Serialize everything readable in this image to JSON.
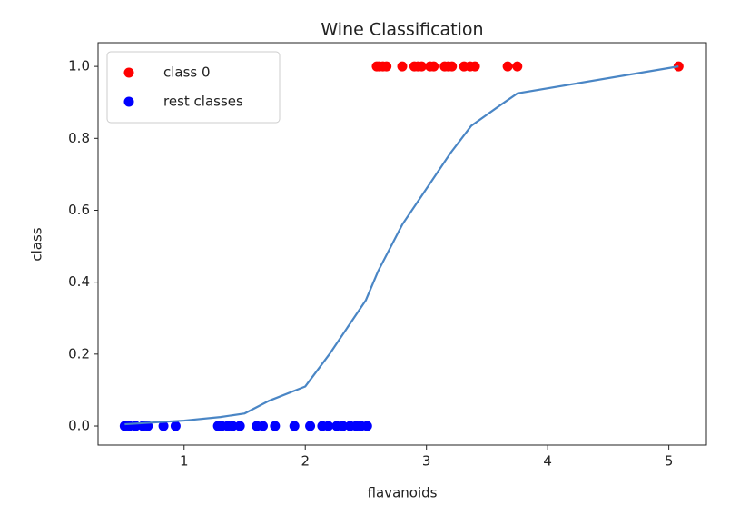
{
  "chart_data": {
    "type": "scatter",
    "title": "Wine Classification",
    "x_label": "flavanoids",
    "y_label": "class",
    "xlim": [
      0.29,
      5.31
    ],
    "ylim": [
      -0.053,
      1.066
    ],
    "xticks": [
      1,
      2,
      3,
      4,
      5
    ],
    "yticks": [
      {
        "value": 0,
        "label": "0.0"
      },
      {
        "value": 0.2,
        "label": "0.2"
      },
      {
        "value": 0.4,
        "label": "0.4"
      },
      {
        "value": 0.6,
        "label": "0.6"
      },
      {
        "value": 0.8,
        "label": "0.8"
      },
      {
        "value": 1,
        "label": "1.0"
      }
    ],
    "legend": "upper left",
    "series": [
      {
        "name": "class 0",
        "color": "#ff0000",
        "x": [
          2.59,
          2.61,
          2.64,
          2.67,
          2.8,
          2.9,
          2.93,
          2.96,
          3.03,
          3.06,
          3.15,
          3.18,
          3.21,
          3.31,
          3.36,
          3.4,
          3.67,
          3.75,
          5.08
        ],
        "values": [
          1,
          1,
          1,
          1,
          1,
          1,
          1,
          1,
          1,
          1,
          1,
          1,
          1,
          1,
          1,
          1,
          1,
          1,
          1
        ]
      },
      {
        "name": "rest classes",
        "color": "#0000ff",
        "x": [
          0.51,
          0.55,
          0.6,
          0.66,
          0.7,
          0.83,
          0.93,
          1.28,
          1.31,
          1.36,
          1.4,
          1.46,
          1.6,
          1.65,
          1.75,
          1.91,
          2.04,
          2.14,
          2.19,
          2.26,
          2.31,
          2.37,
          2.42,
          2.46,
          2.51
        ],
        "values": [
          0,
          0,
          0,
          0,
          0,
          0,
          0,
          0,
          0,
          0,
          0,
          0,
          0,
          0,
          0,
          0,
          0,
          0,
          0,
          0,
          0,
          0,
          0,
          0,
          0
        ]
      },
      {
        "type": "line",
        "color": "#4a86c5",
        "x": [
          0.51,
          1.0,
          1.3,
          1.5,
          1.7,
          2.0,
          2.2,
          2.4,
          2.5,
          2.6,
          2.8,
          3.0,
          3.2,
          3.37,
          3.6,
          3.75,
          5.08
        ],
        "values": [
          0.005,
          0.015,
          0.025,
          0.035,
          0.07,
          0.11,
          0.2,
          0.3,
          0.35,
          0.43,
          0.56,
          0.66,
          0.76,
          0.835,
          0.89,
          0.925,
          1.0
        ]
      }
    ]
  }
}
